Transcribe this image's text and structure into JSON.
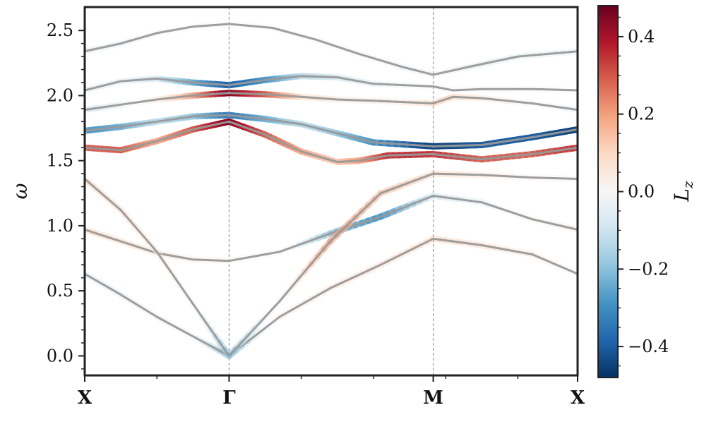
{
  "chart_data": {
    "type": "line",
    "title": "",
    "xlabel": "",
    "ylabel": "ω",
    "x_ticks": [
      "X",
      "Γ",
      "M",
      "X"
    ],
    "x_tick_positions": [
      0,
      1,
      2.414,
      3.414
    ],
    "xlim": [
      0,
      3.414
    ],
    "ylim": [
      -0.15,
      2.68
    ],
    "y_ticks": [
      0.0,
      0.5,
      1.0,
      1.5,
      2.0,
      2.5
    ],
    "y_tick_labels": [
      "0.0",
      "0.5",
      "1.0",
      "1.5",
      "2.0",
      "2.5"
    ],
    "grid": false,
    "vertical_lines_at": [
      1,
      2.414
    ],
    "colorbar": {
      "label": "L",
      "label_subscript": "z",
      "range": [
        -0.48,
        0.48
      ],
      "ticks": [
        0.4,
        0.2,
        0.0,
        -0.2,
        -0.4
      ],
      "tick_labels": [
        "0.4",
        "0.2",
        "0.0",
        "−0.2",
        "−0.4"
      ],
      "colormap": "RdBu_r",
      "colors": [
        "#053061",
        "#2166ac",
        "#4393c3",
        "#92c5de",
        "#d1e5f0",
        "#f7f7f7",
        "#fddbc7",
        "#f4a582",
        "#d6604d",
        "#b2182b",
        "#67001f"
      ]
    },
    "line_color": "#999999",
    "series": [
      {
        "x": [
          0,
          0.25,
          0.5,
          0.75,
          1,
          1.35,
          1.7,
          2.05,
          2.414,
          2.75,
          3.1,
          3.414
        ],
        "y": [
          0.63,
          0.47,
          0.3,
          0.15,
          0.0,
          0.3,
          0.52,
          0.7,
          0.9,
          0.85,
          0.78,
          0.63
        ],
        "lz": [
          -0.05,
          -0.05,
          -0.03,
          -0.02,
          -0.2,
          0.05,
          0.06,
          0.08,
          0.1,
          0.08,
          0.05,
          0.0
        ]
      },
      {
        "x": [
          0,
          0.25,
          0.5,
          0.75,
          1,
          1.35,
          1.7,
          2.05,
          2.414,
          2.75,
          3.1,
          3.414
        ],
        "y": [
          0.97,
          0.88,
          0.79,
          0.74,
          0.73,
          0.8,
          0.94,
          1.07,
          1.23,
          1.18,
          1.05,
          0.97
        ],
        "lz": [
          0.1,
          0.08,
          0.06,
          0.03,
          0.02,
          0.02,
          -0.2,
          -0.3,
          -0.1,
          -0.05,
          0.02,
          0.05
        ]
      },
      {
        "x": [
          0,
          0.25,
          0.5,
          0.75,
          1,
          1.35,
          1.7,
          2.05,
          2.414,
          2.75,
          3.1,
          3.414
        ],
        "y": [
          1.36,
          1.12,
          0.8,
          0.4,
          0.0,
          0.42,
          0.88,
          1.25,
          1.4,
          1.39,
          1.37,
          1.36
        ],
        "lz": [
          0.1,
          0.08,
          0.05,
          0.02,
          -0.2,
          0.02,
          0.2,
          0.15,
          0.1,
          0.05,
          0.02,
          0.02
        ]
      },
      {
        "x": [
          0,
          0.25,
          0.5,
          0.75,
          1,
          1.25,
          1.5,
          1.75,
          1.9,
          2.1,
          2.414,
          2.75,
          3.1,
          3.414
        ],
        "y": [
          1.6,
          1.58,
          1.65,
          1.74,
          1.8,
          1.7,
          1.57,
          1.49,
          1.5,
          1.54,
          1.55,
          1.51,
          1.55,
          1.6
        ],
        "lz": [
          0.3,
          0.3,
          0.2,
          0.3,
          0.45,
          0.3,
          0.2,
          0.15,
          0.2,
          0.35,
          0.35,
          0.3,
          0.3,
          0.35
        ]
      },
      {
        "x": [
          0,
          0.25,
          0.5,
          0.75,
          1,
          1.25,
          1.5,
          1.75,
          2.0,
          2.414,
          2.75,
          3.1,
          3.414
        ],
        "y": [
          1.73,
          1.76,
          1.8,
          1.84,
          1.85,
          1.82,
          1.78,
          1.71,
          1.64,
          1.61,
          1.62,
          1.68,
          1.74
        ],
        "lz": [
          -0.3,
          -0.25,
          -0.15,
          -0.2,
          -0.35,
          -0.25,
          -0.15,
          -0.2,
          -0.3,
          -0.45,
          -0.4,
          -0.4,
          -0.45
        ]
      },
      {
        "x": [
          0,
          0.25,
          0.5,
          0.75,
          1,
          1.25,
          1.5,
          1.75,
          2.0,
          2.414,
          2.55,
          2.75,
          3.1,
          3.414
        ],
        "y": [
          1.89,
          1.93,
          1.97,
          2.0,
          2.02,
          2.01,
          1.99,
          1.97,
          1.96,
          1.94,
          1.99,
          1.98,
          1.94,
          1.89
        ],
        "lz": [
          -0.1,
          -0.05,
          0.05,
          0.2,
          0.45,
          0.3,
          0.1,
          0.05,
          0.03,
          0.1,
          0.1,
          0.05,
          0.02,
          -0.05
        ]
      },
      {
        "x": [
          0,
          0.25,
          0.5,
          0.75,
          1,
          1.25,
          1.5,
          1.75,
          2.0,
          2.414,
          2.55,
          2.75,
          3.1,
          3.414
        ],
        "y": [
          2.04,
          2.11,
          2.13,
          2.1,
          2.08,
          2.12,
          2.15,
          2.14,
          2.09,
          2.07,
          2.04,
          2.05,
          2.05,
          2.04
        ],
        "lz": [
          -0.05,
          -0.05,
          -0.1,
          -0.25,
          -0.4,
          -0.3,
          -0.15,
          -0.1,
          -0.05,
          0.0,
          0.0,
          -0.02,
          0.0,
          0.0
        ]
      },
      {
        "x": [
          0,
          0.25,
          0.5,
          0.75,
          1,
          1.3,
          1.6,
          1.9,
          2.2,
          2.414,
          2.7,
          3.0,
          3.414
        ],
        "y": [
          2.34,
          2.4,
          2.48,
          2.53,
          2.55,
          2.52,
          2.43,
          2.32,
          2.22,
          2.16,
          2.23,
          2.3,
          2.34
        ],
        "lz": [
          -0.05,
          -0.03,
          -0.02,
          0.0,
          0.0,
          0.0,
          0.0,
          -0.02,
          -0.03,
          -0.02,
          -0.05,
          -0.05,
          -0.05
        ]
      }
    ]
  }
}
